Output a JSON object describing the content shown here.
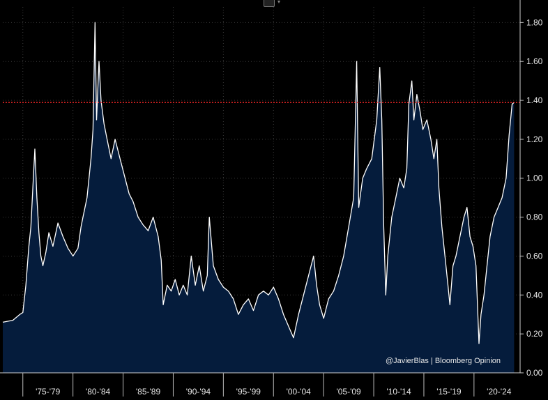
{
  "chart_data": {
    "type": "area",
    "title": "",
    "xlabel": "",
    "ylabel": "",
    "ylim": [
      0.0,
      1.88
    ],
    "xlim": [
      1973.0,
      2024.6
    ],
    "x_tick_labels": [
      "'75-'79",
      "'80-'84",
      "'85-'89",
      "'90-'94",
      "'95-'99",
      "'00-'04",
      "'05-'09",
      "'10-'14",
      "'15-'19",
      "'20-'24"
    ],
    "x_tick_year_positions": [
      1977.5,
      1982.5,
      1987.5,
      1992.5,
      1997.5,
      2002.5,
      2007.5,
      2012.5,
      2017.5,
      2022.5
    ],
    "x_gridline_years": [
      1975,
      1980,
      1985,
      1990,
      1995,
      2000,
      2005,
      2010,
      2015,
      2020
    ],
    "y_ticks": [
      0.0,
      0.2,
      0.4,
      0.6,
      0.8,
      1.0,
      1.2,
      1.4,
      1.6,
      1.8
    ],
    "y_tick_labels": [
      "0.00",
      "0.20",
      "0.40",
      "0.60",
      "0.80",
      "1.00",
      "1.20",
      "1.40",
      "1.60",
      "1.80"
    ],
    "reference_line": {
      "value": 1.39,
      "color": "#ff2a2a",
      "style": "dotted"
    },
    "series": [
      {
        "name": "series",
        "fill_color": "#051c3c",
        "line_color": "#ffffff",
        "points": [
          [
            1973.0,
            0.26
          ],
          [
            1974.0,
            0.27
          ],
          [
            1974.7,
            0.3
          ],
          [
            1975.0,
            0.31
          ],
          [
            1975.3,
            0.45
          ],
          [
            1975.6,
            0.65
          ],
          [
            1975.8,
            0.75
          ],
          [
            1976.0,
            0.95
          ],
          [
            1976.2,
            1.15
          ],
          [
            1976.4,
            0.9
          ],
          [
            1976.6,
            0.72
          ],
          [
            1976.8,
            0.6
          ],
          [
            1977.0,
            0.55
          ],
          [
            1977.3,
            0.62
          ],
          [
            1977.6,
            0.72
          ],
          [
            1978.0,
            0.65
          ],
          [
            1978.5,
            0.77
          ],
          [
            1979.0,
            0.7
          ],
          [
            1979.5,
            0.64
          ],
          [
            1980.0,
            0.6
          ],
          [
            1980.5,
            0.64
          ],
          [
            1980.8,
            0.75
          ],
          [
            1981.0,
            0.8
          ],
          [
            1981.4,
            0.9
          ],
          [
            1981.8,
            1.1
          ],
          [
            1982.0,
            1.25
          ],
          [
            1982.2,
            1.8
          ],
          [
            1982.35,
            1.3
          ],
          [
            1982.6,
            1.6
          ],
          [
            1982.8,
            1.4
          ],
          [
            1983.1,
            1.28
          ],
          [
            1983.4,
            1.2
          ],
          [
            1983.8,
            1.1
          ],
          [
            1984.2,
            1.2
          ],
          [
            1984.7,
            1.1
          ],
          [
            1985.2,
            1.0
          ],
          [
            1985.6,
            0.92
          ],
          [
            1986.0,
            0.88
          ],
          [
            1986.5,
            0.8
          ],
          [
            1987.0,
            0.76
          ],
          [
            1987.5,
            0.73
          ],
          [
            1988.0,
            0.8
          ],
          [
            1988.5,
            0.7
          ],
          [
            1988.8,
            0.58
          ],
          [
            1989.0,
            0.35
          ],
          [
            1989.4,
            0.45
          ],
          [
            1989.8,
            0.42
          ],
          [
            1990.2,
            0.48
          ],
          [
            1990.6,
            0.4
          ],
          [
            1991.0,
            0.45
          ],
          [
            1991.4,
            0.4
          ],
          [
            1991.8,
            0.6
          ],
          [
            1992.2,
            0.45
          ],
          [
            1992.6,
            0.55
          ],
          [
            1993.0,
            0.42
          ],
          [
            1993.4,
            0.5
          ],
          [
            1993.6,
            0.8
          ],
          [
            1994.0,
            0.55
          ],
          [
            1994.5,
            0.48
          ],
          [
            1995.0,
            0.44
          ],
          [
            1995.5,
            0.42
          ],
          [
            1996.0,
            0.38
          ],
          [
            1996.5,
            0.3
          ],
          [
            1997.0,
            0.35
          ],
          [
            1997.5,
            0.38
          ],
          [
            1998.0,
            0.32
          ],
          [
            1998.5,
            0.4
          ],
          [
            1999.0,
            0.42
          ],
          [
            1999.5,
            0.4
          ],
          [
            2000.0,
            0.44
          ],
          [
            2000.5,
            0.38
          ],
          [
            2001.0,
            0.3
          ],
          [
            2001.5,
            0.24
          ],
          [
            2002.0,
            0.18
          ],
          [
            2002.5,
            0.3
          ],
          [
            2003.0,
            0.4
          ],
          [
            2003.5,
            0.5
          ],
          [
            2004.0,
            0.6
          ],
          [
            2004.3,
            0.45
          ],
          [
            2004.6,
            0.35
          ],
          [
            2005.0,
            0.28
          ],
          [
            2005.5,
            0.38
          ],
          [
            2006.0,
            0.42
          ],
          [
            2006.5,
            0.5
          ],
          [
            2007.0,
            0.6
          ],
          [
            2007.5,
            0.75
          ],
          [
            2008.0,
            0.9
          ],
          [
            2008.3,
            1.6
          ],
          [
            2008.5,
            0.85
          ],
          [
            2008.9,
            1.0
          ],
          [
            2009.3,
            1.05
          ],
          [
            2009.8,
            1.1
          ],
          [
            2010.3,
            1.3
          ],
          [
            2010.6,
            1.57
          ],
          [
            2010.8,
            1.3
          ],
          [
            2011.0,
            0.75
          ],
          [
            2011.2,
            0.4
          ],
          [
            2011.4,
            0.6
          ],
          [
            2011.8,
            0.8
          ],
          [
            2012.2,
            0.9
          ],
          [
            2012.6,
            1.0
          ],
          [
            2013.0,
            0.95
          ],
          [
            2013.3,
            1.05
          ],
          [
            2013.5,
            1.38
          ],
          [
            2013.8,
            1.5
          ],
          [
            2014.0,
            1.3
          ],
          [
            2014.3,
            1.43
          ],
          [
            2014.6,
            1.35
          ],
          [
            2014.9,
            1.25
          ],
          [
            2015.3,
            1.3
          ],
          [
            2015.7,
            1.2
          ],
          [
            2016.0,
            1.1
          ],
          [
            2016.3,
            1.2
          ],
          [
            2016.5,
            0.95
          ],
          [
            2016.8,
            0.75
          ],
          [
            2017.1,
            0.6
          ],
          [
            2017.4,
            0.45
          ],
          [
            2017.6,
            0.35
          ],
          [
            2017.9,
            0.55
          ],
          [
            2018.2,
            0.6
          ],
          [
            2018.6,
            0.7
          ],
          [
            2019.0,
            0.8
          ],
          [
            2019.3,
            0.85
          ],
          [
            2019.6,
            0.7
          ],
          [
            2019.9,
            0.65
          ],
          [
            2020.2,
            0.55
          ],
          [
            2020.5,
            0.15
          ],
          [
            2020.7,
            0.3
          ],
          [
            2021.0,
            0.4
          ],
          [
            2021.3,
            0.55
          ],
          [
            2021.6,
            0.7
          ],
          [
            2022.0,
            0.8
          ],
          [
            2022.4,
            0.85
          ],
          [
            2022.8,
            0.9
          ],
          [
            2023.2,
            1.0
          ],
          [
            2023.5,
            1.22
          ],
          [
            2023.8,
            1.38
          ],
          [
            2024.0,
            1.39
          ]
        ]
      }
    ],
    "credit": "@JavierBlas  |  Bloomberg Opinion"
  }
}
